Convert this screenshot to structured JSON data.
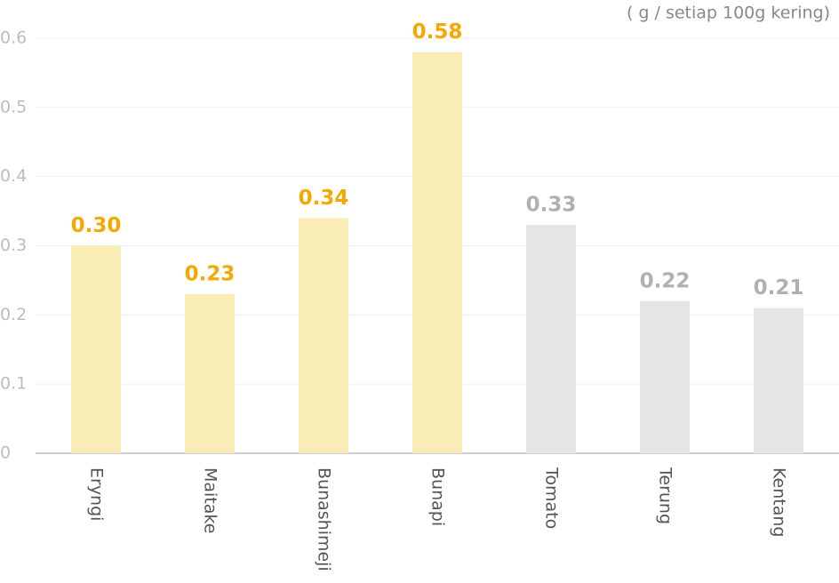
{
  "chart_data": {
    "type": "bar",
    "unit_label": "( g / setiap 100g kering)",
    "categories": [
      "Eryngi",
      "Maitake",
      "Bunashimeji",
      "Bunapi",
      "Tomato",
      "Terung",
      "Kentang"
    ],
    "values": [
      0.3,
      0.23,
      0.34,
      0.58,
      0.33,
      0.22,
      0.21
    ],
    "value_labels": [
      "0.30",
      "0.23",
      "0.34",
      "0.58",
      "0.33",
      "0.22",
      "0.21"
    ],
    "colors": [
      "#f9edb5",
      "#f9edb5",
      "#f9edb5",
      "#f9edb5",
      "#e5e5e5",
      "#e5e5e5",
      "#e5e5e5"
    ],
    "label_colors": [
      "#f5a800",
      "#f5a800",
      "#f5a800",
      "#f5a800",
      "#b0b0b0",
      "#b0b0b0",
      "#b0b0b0"
    ],
    "ylim": [
      0,
      0.6
    ],
    "yticks": [
      0,
      0.1,
      0.2,
      0.3,
      0.4,
      0.5,
      0.6
    ],
    "grid": true
  }
}
